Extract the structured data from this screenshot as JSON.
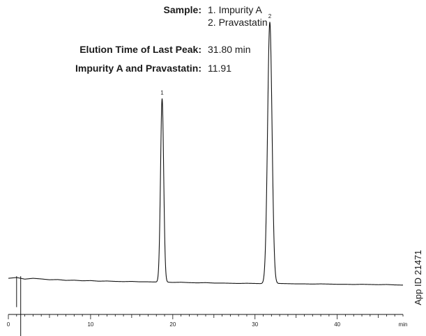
{
  "info": {
    "rows": [
      {
        "label": "Sample:",
        "values": [
          "1. Impurity A",
          "2. Pravastatin"
        ]
      },
      {
        "label": "Elution Time of Last Peak:",
        "values": [
          "31.80 min"
        ]
      },
      {
        "label": "Impurity A and Pravastatin:",
        "values": [
          "11.91"
        ]
      }
    ]
  },
  "side_label": "App ID 21471",
  "chart_data": {
    "type": "line",
    "xunit": "min",
    "xlim": [
      0,
      48
    ],
    "ylim": [
      0,
      100
    ],
    "x_ticks": [
      0,
      10,
      20,
      30,
      40
    ],
    "x_tick_labels": [
      "0",
      "10",
      "20",
      "30",
      "40",
      "min"
    ],
    "grid": false,
    "peaks": [
      {
        "label": "1",
        "time": 18.7,
        "height": 89
      },
      {
        "label": "2",
        "time": 31.8,
        "height": 127
      }
    ],
    "baseline": [
      [
        0.0,
        2.0
      ],
      [
        1.0,
        2.4
      ],
      [
        2.0,
        1.6
      ],
      [
        3.0,
        2.0
      ],
      [
        4.0,
        1.7
      ],
      [
        5.0,
        1.3
      ],
      [
        6.0,
        1.4
      ],
      [
        7.0,
        1.0
      ],
      [
        8.0,
        1.1
      ],
      [
        9.0,
        0.8
      ],
      [
        10.0,
        0.9
      ],
      [
        11.0,
        0.6
      ],
      [
        12.0,
        0.7
      ],
      [
        13.0,
        0.5
      ],
      [
        14.0,
        0.4
      ],
      [
        15.0,
        0.5
      ],
      [
        16.0,
        0.3
      ],
      [
        17.0,
        0.3
      ],
      [
        18.0,
        0.2
      ],
      [
        19.0,
        0.2
      ],
      [
        20.0,
        0.0
      ],
      [
        21.0,
        0.1
      ],
      [
        22.0,
        -0.1
      ],
      [
        23.0,
        -0.2
      ],
      [
        24.0,
        -0.1
      ],
      [
        25.0,
        -0.3
      ],
      [
        26.0,
        -0.3
      ],
      [
        27.0,
        -0.4
      ],
      [
        28.0,
        -0.5
      ],
      [
        29.0,
        -0.4
      ],
      [
        30.0,
        -0.5
      ],
      [
        31.0,
        -0.6
      ],
      [
        32.0,
        -0.6
      ],
      [
        33.0,
        -0.5
      ],
      [
        34.0,
        -0.6
      ],
      [
        35.0,
        -0.7
      ],
      [
        36.0,
        -0.7
      ],
      [
        37.0,
        -0.8
      ],
      [
        38.0,
        -0.7
      ],
      [
        39.0,
        -0.8
      ],
      [
        40.0,
        -0.9
      ],
      [
        41.0,
        -0.9
      ],
      [
        42.0,
        -1.0
      ],
      [
        43.0,
        -0.9
      ],
      [
        44.0,
        -1.0
      ],
      [
        45.0,
        -1.1
      ],
      [
        46.0,
        -1.0
      ],
      [
        47.0,
        -1.2
      ],
      [
        48.0,
        -1.3
      ]
    ],
    "disturbance": [
      {
        "time": 1.0,
        "min": -12.0,
        "max": 3.0
      },
      {
        "time": 1.5,
        "min": -30.0,
        "max": 3.0
      }
    ]
  }
}
